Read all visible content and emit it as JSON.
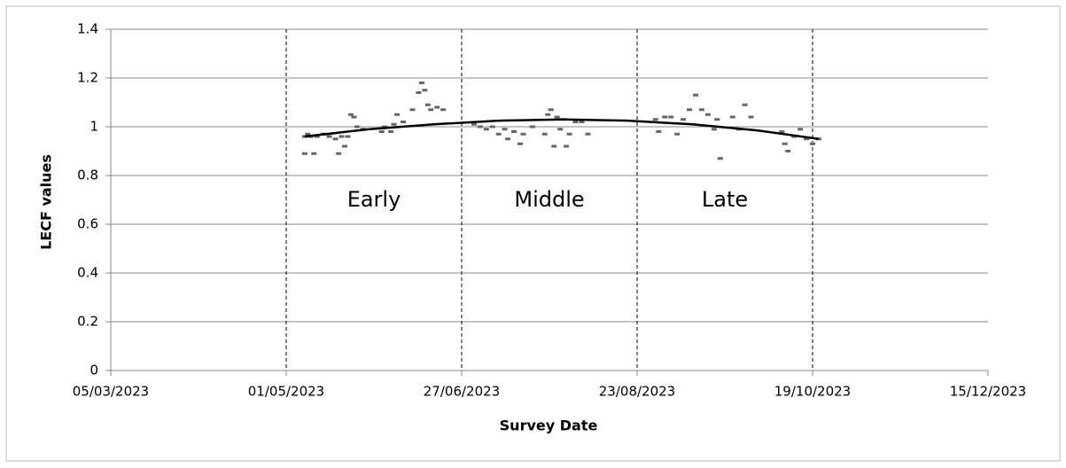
{
  "chart_data": {
    "type": "scatter",
    "x_label": "Survey Date",
    "y_label": "LECF values",
    "xlim": [
      "2023-03-05",
      "2023-12-15"
    ],
    "xticks": [
      {
        "value": "2023-03-05",
        "label": "05/03/2023"
      },
      {
        "value": "2023-05-01",
        "label": "01/05/2023"
      },
      {
        "value": "2023-06-27",
        "label": "27/06/2023"
      },
      {
        "value": "2023-08-23",
        "label": "23/08/2023"
      },
      {
        "value": "2023-10-19",
        "label": "19/10/2023"
      },
      {
        "value": "2023-12-15",
        "label": "15/12/2023"
      }
    ],
    "ylim": [
      0,
      1.4
    ],
    "yticks": [
      0,
      0.2,
      0.4,
      0.6,
      0.8,
      1,
      1.2,
      1.4
    ],
    "grid": true,
    "regions": [
      {
        "label": "Early",
        "start": "2023-05-01",
        "end": "2023-06-27"
      },
      {
        "label": "Middle",
        "start": "2023-06-27",
        "end": "2023-08-23"
      },
      {
        "label": "Late",
        "start": "2023-08-23",
        "end": "2023-10-19"
      }
    ],
    "series": [
      {
        "kind": "points",
        "color": "#666666",
        "x": [
          "2023-05-07",
          "2023-05-07",
          "2023-05-08",
          "2023-05-09",
          "2023-05-10",
          "2023-05-11",
          "2023-05-13",
          "2023-05-15",
          "2023-05-17",
          "2023-05-18",
          "2023-05-19",
          "2023-05-20",
          "2023-05-21",
          "2023-05-22",
          "2023-05-23",
          "2023-05-24",
          "2023-05-26",
          "2023-06-01",
          "2023-06-02",
          "2023-06-04",
          "2023-06-05",
          "2023-06-06",
          "2023-06-08",
          "2023-06-11",
          "2023-06-13",
          "2023-06-14",
          "2023-06-15",
          "2023-06-16",
          "2023-06-17",
          "2023-06-19",
          "2023-06-21",
          "2023-07-01",
          "2023-07-03",
          "2023-07-05",
          "2023-07-07",
          "2023-07-09",
          "2023-07-11",
          "2023-07-12",
          "2023-07-14",
          "2023-07-16",
          "2023-07-17",
          "2023-07-20",
          "2023-07-24",
          "2023-07-25",
          "2023-07-26",
          "2023-07-27",
          "2023-07-28",
          "2023-07-29",
          "2023-07-30",
          "2023-07-31",
          "2023-08-01",
          "2023-08-03",
          "2023-08-05",
          "2023-08-07",
          "2023-08-29",
          "2023-08-30",
          "2023-09-01",
          "2023-09-03",
          "2023-09-05",
          "2023-09-07",
          "2023-09-09",
          "2023-09-11",
          "2023-09-13",
          "2023-09-15",
          "2023-09-17",
          "2023-09-18",
          "2023-09-19",
          "2023-09-23",
          "2023-09-25",
          "2023-09-27",
          "2023-09-29",
          "2023-10-09",
          "2023-10-10",
          "2023-10-11",
          "2023-10-13",
          "2023-10-15",
          "2023-10-17",
          "2023-10-19",
          "2023-10-21"
        ],
        "values": [
          0.96,
          0.89,
          0.97,
          0.96,
          0.89,
          0.96,
          0.97,
          0.96,
          0.95,
          0.89,
          0.96,
          0.92,
          0.96,
          1.05,
          1.04,
          1.0,
          0.99,
          0.98,
          1.0,
          0.98,
          1.01,
          1.05,
          1.02,
          1.07,
          1.14,
          1.18,
          1.15,
          1.09,
          1.07,
          1.08,
          1.07,
          1.01,
          1.0,
          0.99,
          1.0,
          0.97,
          0.99,
          0.95,
          0.98,
          0.93,
          0.97,
          1.0,
          0.97,
          1.05,
          1.07,
          0.92,
          1.04,
          0.99,
          1.03,
          0.92,
          0.97,
          1.02,
          1.02,
          0.97,
          1.03,
          0.98,
          1.04,
          1.04,
          0.97,
          1.03,
          1.07,
          1.13,
          1.07,
          1.05,
          0.99,
          1.03,
          0.87,
          1.04,
          0.99,
          1.09,
          1.04,
          0.98,
          0.93,
          0.9,
          0.96,
          0.99,
          0.95,
          0.93,
          0.95
        ]
      },
      {
        "kind": "trend",
        "color": "#000000",
        "x": [
          "2023-05-07",
          "2023-05-28",
          "2023-06-18",
          "2023-07-09",
          "2023-07-30",
          "2023-08-20",
          "2023-09-10",
          "2023-10-01",
          "2023-10-21"
        ],
        "values": [
          0.96,
          0.99,
          1.01,
          1.025,
          1.03,
          1.025,
          1.01,
          0.985,
          0.95
        ]
      }
    ]
  }
}
